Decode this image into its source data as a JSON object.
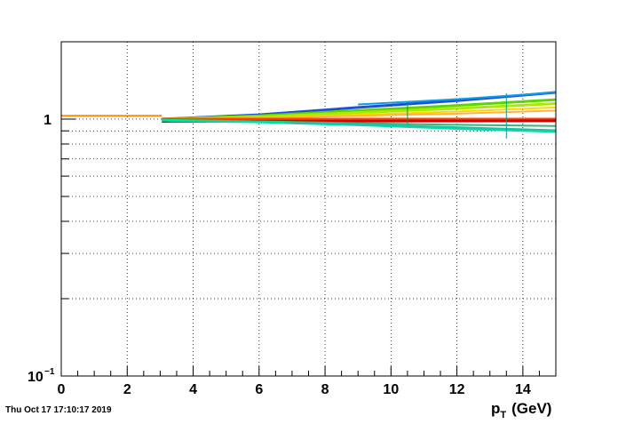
{
  "chart_data": {
    "type": "line",
    "title": "",
    "xlabel": "p_T (GeV)",
    "xlabel_main": "p",
    "xlabel_sub": "T",
    "xlabel_unit": "(GeV)",
    "ylabel": "",
    "xlim": [
      0,
      15
    ],
    "ylim": [
      0.1,
      2
    ],
    "yscale": "log",
    "grid": true,
    "x_ticks": [
      0,
      2,
      4,
      6,
      8,
      10,
      12,
      14
    ],
    "x_tick_labels": [
      "0",
      "2",
      "4",
      "6",
      "8",
      "10",
      "12",
      "14"
    ],
    "y_major_ticks": [
      0.1,
      1
    ],
    "y_major_labels": [
      "10",
      "1"
    ],
    "y_major_label_exp": [
      "−1",
      ""
    ],
    "y_minor_ticks": [
      0.2,
      0.3,
      0.4,
      0.5,
      0.6,
      0.7,
      0.8,
      0.9,
      2
    ],
    "series": [
      {
        "color": "#ff8c00",
        "width": 2,
        "x": [
          0,
          3.05
        ],
        "y": [
          1.03,
          1.03
        ]
      },
      {
        "color": "#1f4fd6",
        "width": 3,
        "x": [
          3.05,
          6,
          9,
          12,
          15
        ],
        "y": [
          1.0,
          1.04,
          1.11,
          1.18,
          1.27
        ]
      },
      {
        "color": "#0aa0e6",
        "width": 2,
        "x": [
          9,
          12.2,
          15
        ],
        "y": [
          1.14,
          1.2,
          1.27
        ]
      },
      {
        "color": "#5cd600",
        "width": 3,
        "x": [
          3.05,
          6,
          9,
          12,
          15
        ],
        "y": [
          1.0,
          1.03,
          1.08,
          1.13,
          1.19
        ]
      },
      {
        "color": "#a8ea00",
        "width": 3,
        "x": [
          3.05,
          6,
          9,
          12,
          15
        ],
        "y": [
          1.0,
          1.02,
          1.06,
          1.1,
          1.15
        ]
      },
      {
        "color": "#ffd700",
        "width": 2,
        "x": [
          3.05,
          6,
          9,
          12,
          15
        ],
        "y": [
          1.0,
          1.01,
          1.04,
          1.07,
          1.11
        ]
      },
      {
        "color": "#ffb347",
        "width": 2,
        "x": [
          3.05,
          6,
          9,
          12,
          15
        ],
        "y": [
          1.0,
          1.01,
          1.03,
          1.05,
          1.08
        ]
      },
      {
        "color": "#ff4500",
        "width": 3,
        "x": [
          3.05,
          15
        ],
        "y": [
          1.0,
          1.0
        ]
      },
      {
        "color": "#cc0000",
        "width": 3,
        "x": [
          3.05,
          15
        ],
        "y": [
          0.98,
          0.985
        ]
      },
      {
        "color": "#3cb371",
        "width": 2,
        "x": [
          3.05,
          6,
          9,
          12,
          15
        ],
        "y": [
          0.99,
          0.98,
          0.965,
          0.95,
          0.94
        ]
      },
      {
        "color": "#00e0a0",
        "width": 3,
        "x": [
          3.05,
          6,
          9,
          12,
          15
        ],
        "y": [
          0.99,
          0.975,
          0.95,
          0.92,
          0.895
        ]
      },
      {
        "color": "#20c0b0",
        "width": 2,
        "x": [
          6.8,
          9,
          12,
          15
        ],
        "y": [
          0.97,
          0.955,
          0.93,
          0.905
        ]
      }
    ],
    "error_bars": [
      {
        "color": "#1a8a3a",
        "x": 10.5,
        "y": 1.06,
        "ylow": 0.96,
        "yhigh": 1.16
      },
      {
        "color": "#00a0a0",
        "x": 13.5,
        "y": 1.03,
        "ylow": 0.84,
        "yhigh": 1.26
      }
    ]
  },
  "footer": {
    "timestamp": "Thu Oct 17 17:10:17 2019"
  }
}
